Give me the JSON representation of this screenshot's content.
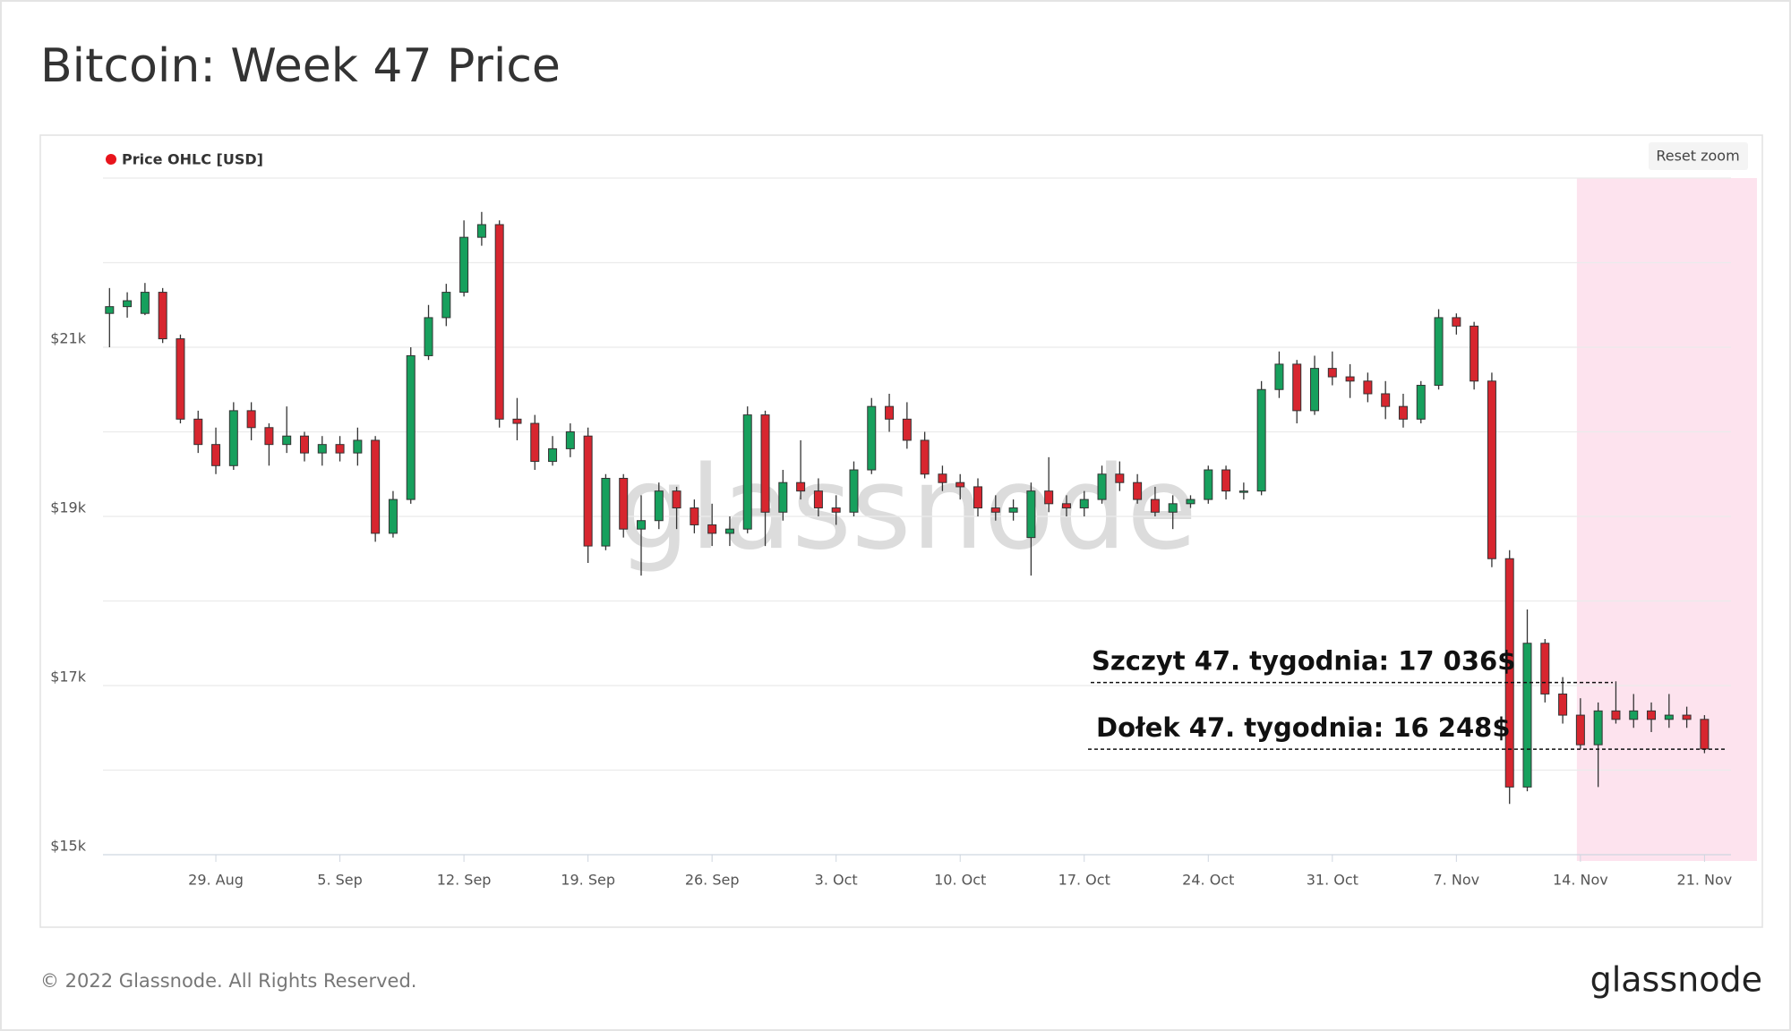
{
  "title": "Bitcoin: Week 47 Price",
  "footer": "© 2022 Glassnode. All Rights Reserved.",
  "logo": "glassnode",
  "watermark": "glassnode",
  "reset_zoom": "Reset zoom",
  "chart_data": {
    "type": "candlestick",
    "categories": [
      null,
      null,
      null,
      null,
      null,
      null,
      "29. Aug",
      null,
      null,
      null,
      null,
      null,
      null,
      "5. Sep",
      null,
      null,
      null,
      null,
      null,
      null,
      "12. Sep",
      null,
      null,
      null,
      null,
      null,
      null,
      "19. Sep",
      null,
      null,
      null,
      null,
      null,
      null,
      "26. Sep",
      null,
      null,
      null,
      null,
      null,
      null,
      "3. Oct",
      null,
      null,
      null,
      null,
      null,
      null,
      "10. Oct",
      null,
      null,
      null,
      null,
      null,
      null,
      "17. Oct",
      null,
      null,
      null,
      null,
      null,
      null,
      "24. Oct",
      null,
      null,
      null,
      null,
      null,
      null,
      "31. Oct",
      null,
      null,
      null,
      null,
      null,
      null,
      "7. Nov",
      null,
      null,
      null,
      null,
      null,
      null,
      "14. Nov",
      null,
      null,
      null,
      null,
      null,
      null,
      "21. Nov"
    ],
    "series": [
      {
        "name": "Price OHLC [USD]",
        "legend_color": "#e8141c",
        "up_color": "#17a05d",
        "down_color": "#d7262f",
        "open": [
          21400,
          21480,
          21400,
          21650,
          21100,
          20150,
          19850,
          19600,
          20250,
          20050,
          19850,
          19950,
          19750,
          19850,
          19750,
          19900,
          18800,
          19200,
          20900,
          21350,
          21650,
          22300,
          22450,
          20150,
          20100,
          19650,
          19800,
          19950,
          18650,
          19450,
          18850,
          18950,
          19300,
          19100,
          18900,
          18800,
          18850,
          20200,
          19050,
          19400,
          19300,
          19100,
          19050,
          19550,
          20300,
          20150,
          19900,
          19500,
          19400,
          19350,
          19100,
          19050,
          18750,
          19300,
          19150,
          19100,
          19200,
          19500,
          19400,
          19200,
          19050,
          19150,
          19200,
          19550,
          19300,
          19300,
          20500,
          20800,
          20250,
          20750,
          20650,
          20600,
          20450,
          20300,
          20150,
          20550,
          21350,
          21250,
          20600,
          18500,
          15800,
          17500,
          16900,
          16650,
          16300,
          16700,
          16600,
          16700,
          16600,
          16650,
          16600
        ],
        "high": [
          21700,
          21650,
          21760,
          21700,
          21150,
          20250,
          20050,
          20350,
          20350,
          20100,
          20300,
          20000,
          19950,
          19950,
          20050,
          19950,
          19300,
          21000,
          21500,
          21750,
          22500,
          22600,
          22500,
          20400,
          20200,
          19950,
          20100,
          20050,
          19500,
          19500,
          19250,
          19400,
          19350,
          19200,
          19150,
          19000,
          20300,
          20250,
          19550,
          19900,
          19450,
          19250,
          19650,
          20400,
          20450,
          20350,
          20000,
          19600,
          19500,
          19450,
          19250,
          19200,
          19400,
          19700,
          19250,
          19300,
          19600,
          19650,
          19500,
          19350,
          19250,
          19250,
          19600,
          19600,
          19400,
          20600,
          20950,
          20850,
          20900,
          20950,
          20800,
          20700,
          20600,
          20450,
          20600,
          21450,
          21400,
          21300,
          20700,
          18600,
          17900,
          17550,
          17100,
          16850,
          16800,
          17050,
          16900,
          16800,
          16900,
          16750,
          16650
        ],
        "low": [
          21000,
          21350,
          21380,
          21050,
          20100,
          19750,
          19500,
          19550,
          19900,
          19600,
          19750,
          19650,
          19600,
          19650,
          19600,
          18700,
          18750,
          19150,
          20850,
          21250,
          21600,
          22200,
          20050,
          19900,
          19550,
          19600,
          19700,
          18450,
          18600,
          18750,
          18300,
          18850,
          18850,
          18800,
          18650,
          18650,
          18800,
          18650,
          18950,
          19200,
          19000,
          18900,
          19000,
          19500,
          20000,
          19800,
          19450,
          19300,
          19200,
          19000,
          18950,
          18950,
          18300,
          19050,
          19000,
          19000,
          19150,
          19300,
          19150,
          19000,
          18850,
          19100,
          19150,
          19200,
          19200,
          19250,
          20400,
          20100,
          20200,
          20550,
          20400,
          20350,
          20150,
          20050,
          20100,
          20500,
          21150,
          20500,
          18400,
          15600,
          15750,
          16800,
          16550,
          16250,
          15800,
          16550,
          16500,
          16450,
          16500,
          16500,
          16200
        ],
        "close": [
          21480,
          21550,
          21650,
          21100,
          20150,
          19850,
          19600,
          20250,
          20050,
          19850,
          19950,
          19750,
          19850,
          19750,
          19900,
          18800,
          19200,
          20900,
          21350,
          21650,
          22300,
          22450,
          20150,
          20100,
          19650,
          19800,
          20000,
          18650,
          19450,
          18850,
          18950,
          19300,
          19100,
          18900,
          18800,
          18850,
          20200,
          19050,
          19400,
          19300,
          19100,
          19050,
          19550,
          20300,
          20150,
          19900,
          19500,
          19400,
          19350,
          19100,
          19050,
          19100,
          19300,
          19150,
          19100,
          19200,
          19500,
          19400,
          19200,
          19050,
          19150,
          19200,
          19550,
          19300,
          19300,
          20500,
          20800,
          20250,
          20750,
          20650,
          20600,
          20450,
          20300,
          20150,
          20550,
          21350,
          21250,
          20600,
          18500,
          15800,
          17500,
          16900,
          16650,
          16300,
          16700,
          16600,
          16700,
          16600,
          16650,
          16600,
          16250
        ]
      }
    ],
    "ylim": [
      15000,
      23000
    ],
    "yticks": [
      {
        "value": 15000,
        "label": "$15k"
      },
      {
        "value": 17000,
        "label": "$17k"
      },
      {
        "value": 19000,
        "label": "$19k"
      },
      {
        "value": 21000,
        "label": "$21k"
      }
    ],
    "grid_lines": [
      16000,
      18000,
      20000,
      22000,
      23000
    ],
    "grid": true,
    "legend": "top-left",
    "highlight_from": "14. Nov",
    "highlight_color": "#fde3ee",
    "annotations": [
      {
        "text": "Szczyt 47. tygodnia: 17 036$",
        "value": 17036
      },
      {
        "text": "Dołek 47. tygodnia: 16 248$",
        "value": 16248
      }
    ]
  }
}
